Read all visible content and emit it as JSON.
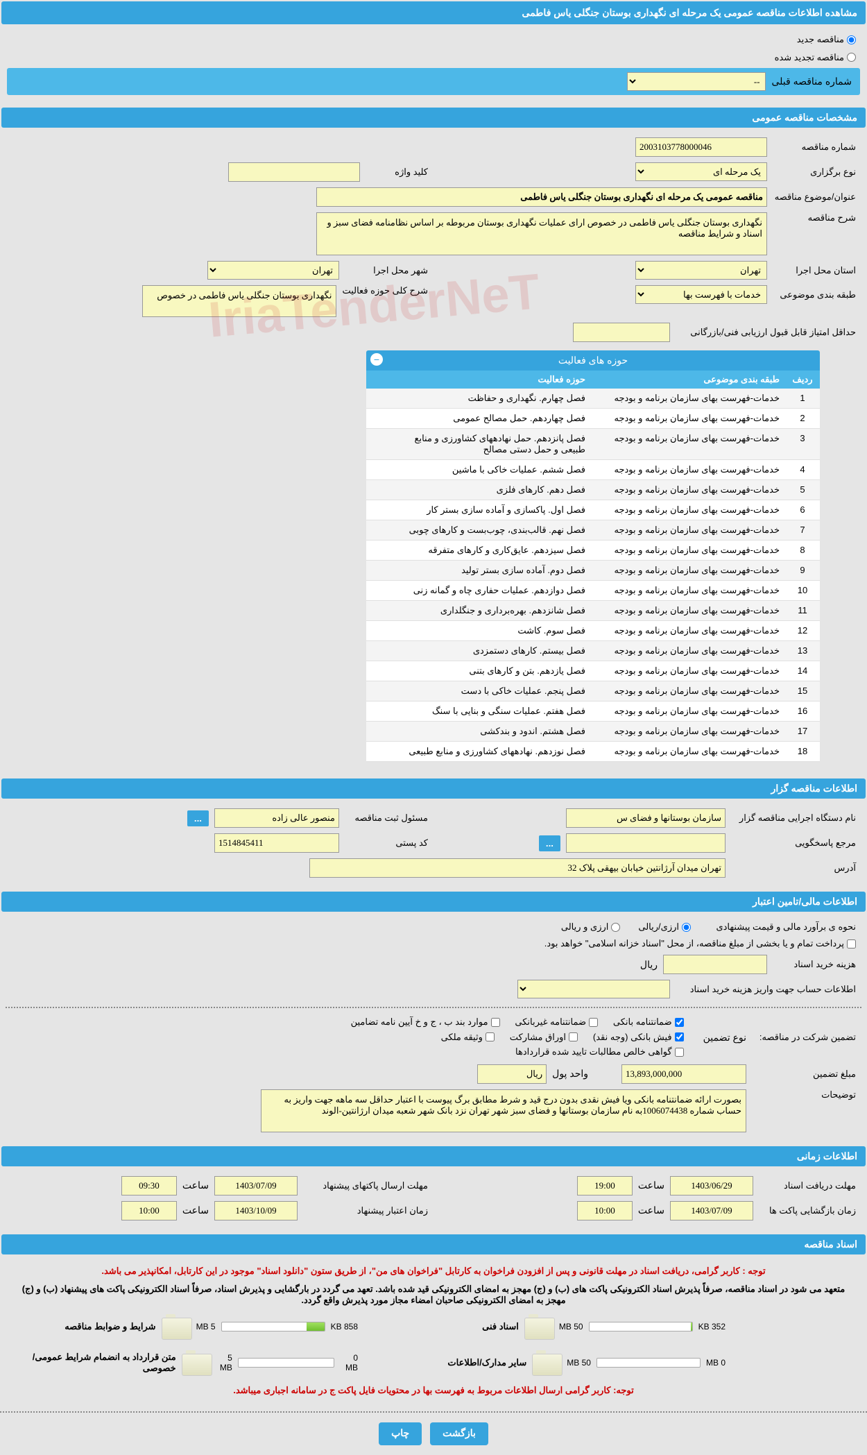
{
  "page_title": "مشاهده اطلاعات مناقصه عمومی یک مرحله ای نگهداری بوستان جنگلی یاس فاطمی",
  "radio_new": "مناقصه جدید",
  "radio_renewed": "مناقصه تجدید شده",
  "prev_number_label": "شماره مناقصه قبلی",
  "prev_number_placeholder": "--",
  "section_general": "مشخصات مناقصه عمومی",
  "tender_number_label": "شماره مناقصه",
  "tender_number": "2003103778000046",
  "type_label": "نوع برگزاری",
  "type_value": "یک مرحله ای",
  "keyword_label": "کلید واژه",
  "keyword_value": "",
  "title_label": "عنوان/موضوع مناقصه",
  "title_value": "مناقصه عمومی یک مرحله ای نگهداری بوستان جنگلی یاس فاطمی",
  "desc_label": "شرح مناقصه",
  "desc_value": "نگهداری بوستان جنگلی یاس فاطمی در خصوص ارای عملیات نگهداری بوستان مربوطه بر اساس نظامنامه فضای سبز و اسناد و شرایط مناقصه",
  "province_label": "استان محل اجرا",
  "province_value": "تهران",
  "city_label": "شهر محل اجرا",
  "city_value": "تهران",
  "category_label": "طبقه بندی موضوعی",
  "category_value": "خدمات با فهرست بها",
  "activity_scope_label": "شرح کلی حوزه فعالیت",
  "activity_scope_value": "نگهداری بوستان جنگلی یاس فاطمی در خصوص",
  "min_score_label": "حداقل امتیاز قابل قبول ارزیابی فنی/بازرگانی",
  "min_score_value": "",
  "activities_table": {
    "title": "حوزه های فعالیت",
    "col_idx": "ردیف",
    "col_cat": "طبقه بندی موضوعی",
    "col_act": "حوزه فعالیت",
    "rows": [
      {
        "i": "1",
        "c": "خدمات-فهرست بهای سازمان برنامه و بودجه",
        "a": "فصل چهارم. نگهداری و حفاظت"
      },
      {
        "i": "2",
        "c": "خدمات-فهرست بهای سازمان برنامه و بودجه",
        "a": "فصل چهاردهم. حمل مصالح عمومی"
      },
      {
        "i": "3",
        "c": "خدمات-فهرست بهای سازمان برنامه و بودجه",
        "a": "فصل پانزدهم. حمل نهادههای کشاورزی و منابع طبیعی و حمل دستی مصالح"
      },
      {
        "i": "4",
        "c": "خدمات-فهرست بهای سازمان برنامه و بودجه",
        "a": "فصل ششم. عملیات خاکی با ماشین"
      },
      {
        "i": "5",
        "c": "خدمات-فهرست بهای سازمان برنامه و بودجه",
        "a": "فصل دهم. کارهای فلزی"
      },
      {
        "i": "6",
        "c": "خدمات-فهرست بهای سازمان برنامه و بودجه",
        "a": "فصل اول. پاکسازی و آماده سازی بستر کار"
      },
      {
        "i": "7",
        "c": "خدمات-فهرست بهای سازمان برنامه و بودجه",
        "a": "فصل نهم. قالب‌بندی، چوب‌بست و کارهای چوبی"
      },
      {
        "i": "8",
        "c": "خدمات-فهرست بهای سازمان برنامه و بودجه",
        "a": "فصل سیزدهم. عایق‌کاری و کارهای متفرقه"
      },
      {
        "i": "9",
        "c": "خدمات-فهرست بهای سازمان برنامه و بودجه",
        "a": "فصل دوم. آماده سازی بستر تولید"
      },
      {
        "i": "10",
        "c": "خدمات-فهرست بهای سازمان برنامه و بودجه",
        "a": "فصل دوازدهم. عملیات حفاری چاه و گمانه زنی"
      },
      {
        "i": "11",
        "c": "خدمات-فهرست بهای سازمان برنامه و بودجه",
        "a": "فصل شانزدهم. بهره‌برداری و جنگلداری"
      },
      {
        "i": "12",
        "c": "خدمات-فهرست بهای سازمان برنامه و بودجه",
        "a": "فصل سوم. کاشت"
      },
      {
        "i": "13",
        "c": "خدمات-فهرست بهای سازمان برنامه و بودجه",
        "a": "فصل بیستم. کارهای دستمزدی"
      },
      {
        "i": "14",
        "c": "خدمات-فهرست بهای سازمان برنامه و بودجه",
        "a": "فصل یازدهم. بتن و کارهای بتنی"
      },
      {
        "i": "15",
        "c": "خدمات-فهرست بهای سازمان برنامه و بودجه",
        "a": "فصل پنجم. عملیات خاکی با دست"
      },
      {
        "i": "16",
        "c": "خدمات-فهرست بهای سازمان برنامه و بودجه",
        "a": "فصل هفتم. عملیات سنگی و بنایی با سنگ"
      },
      {
        "i": "17",
        "c": "خدمات-فهرست بهای سازمان برنامه و بودجه",
        "a": "فصل هشتم. اندود و بندکشی"
      },
      {
        "i": "18",
        "c": "خدمات-فهرست بهای سازمان برنامه و بودجه",
        "a": "فصل  نوزدهم. نهادههای کشاورزی و منابع طبیعی"
      }
    ]
  },
  "section_owner": "اطلاعات مناقصه گزار",
  "owner_name_label": "نام دستگاه اجرایی مناقصه گزار",
  "owner_name": "سازمان بوستانها و فضای س",
  "reg_officer_label": "مسئول ثبت مناقصه",
  "reg_officer": "منصور عالی زاده",
  "contact_label": "مرجع پاسخگویی",
  "contact_value": "",
  "postal_label": "کد پستی",
  "postal_value": "1514845411",
  "address_label": "آدرس",
  "address_value": "تهران میدان آرژانتین خیابان بیهقی پلاک 32",
  "section_finance": "اطلاعات مالی/تامین اعتبار",
  "est_method_label": "نحوه ی برآورد مالی و قیمت پیشنهادی",
  "est_method_opt1": "ارزی/ریالی",
  "est_method_opt2": "ارزی و ریالی",
  "treasury_note": "پرداخت تمام و یا بخشی از مبلغ مناقصه، از محل \"اسناد خزانه اسلامی\" خواهد بود.",
  "doc_fee_label": "هزینه خرید اسناد",
  "doc_fee_value": "",
  "currency_rial": "ریال",
  "deposit_info_label": "اطلاعات حساب جهت واریز هزینه خرید اسناد",
  "guarantee_label": "تضمین شرکت در مناقصه:",
  "guarantee_type_label": "نوع تضمین",
  "g_bank": "ضمانتنامه بانکی",
  "g_nonbank": "ضمانتنامه غیربانکی",
  "g_bonds": "موارد بند ب ، ج و خ آیین نامه تضامین",
  "g_fish": "فیش بانکی (وجه نقد)",
  "g_securities": "اوراق مشارکت",
  "g_property": "وثیقه ملکی",
  "g_approved": "گواهی خالص مطالبات تایید شده قراردادها",
  "guarantee_amount_label": "مبلغ تضمین",
  "guarantee_amount": "13,893,000,000",
  "unit_label": "واحد پول",
  "unit_value": "ریال",
  "explain_label": "توضیحات",
  "explain_value": "بصورت ارائه ضمانتنامه بانکی ویا فیش نقدی بدون درج قید و شرط مطابق برگ پیوست با اعتبار حداقل سه ماهه جهت واریز به حساب شماره 1006074438به نام سازمان بوستانها و فضای سبز شهر تهران نزد بانک شهر شعبه میدان ارژانتین-الوند",
  "section_time": "اطلاعات زمانی",
  "deadline_receive_label": "مهلت دریافت اسناد",
  "deadline_receive_date": "1403/06/29",
  "time_label": "ساعت",
  "deadline_receive_time": "19:00",
  "deadline_submit_label": "مهلت ارسال پاکتهای پیشنهاد",
  "deadline_submit_date": "1403/07/09",
  "deadline_submit_time": "09:30",
  "opening_label": "زمان بازگشایی پاکت ها",
  "opening_date": "1403/07/09",
  "opening_time": "10:00",
  "validity_label": "زمان اعتبار پیشنهاد",
  "validity_date": "1403/10/09",
  "validity_time": "10:00",
  "section_docs": "اسناد مناقصه",
  "notice1": "توجه : کاربر گرامی، دریافت اسناد در مهلت قانونی و پس از افزودن فراخوان به کارتابل \"فراخوان های من\"، از طریق ستون \"دانلود اسناد\" موجود در این کارتابل، امکانپذیر می باشد.",
  "notice2": "متعهد می شود در اسناد مناقصه، صرفاً پذیرش اسناد الکترونیکی پاکت های (ب) و (ج) مهجز به امضای الکترونیکی قید شده باشد. تعهد می گردد در بارگشایی و پذیرش اسناد، صرفاً اسناد الکترونیکی پاکت های پیشنهاد (ب) و (ج) مهجز به امضای الکترونیکی صاحبان امضاء مجاز مورد پذیرش واقع گردد.",
  "doc_terms": "شرایط و ضوابط مناقصه",
  "doc_tech": "اسناد فنی",
  "doc_terms_size": "858 KB",
  "doc_terms_max": "5 MB",
  "doc_tech_size": "352 KB",
  "doc_tech_max": "50 MB",
  "doc_contract": "متن قرارداد به انضمام شرایط عمومی/خصوصی",
  "doc_other": "سایر مدارک/اطلاعات",
  "doc_contract_size": "0 MB",
  "doc_contract_max": "5 MB",
  "doc_other_size": "0 MB",
  "doc_other_max": "50 MB",
  "notice3": "توجه: کاربر گرامی ارسال اطلاعات مربوط به فهرست بها در محتویات فایل پاکت ج در سامانه اجباری میباشد.",
  "btn_back": "بازگشت",
  "btn_print": "چاپ",
  "watermark_text": "IriaTenderNeT"
}
